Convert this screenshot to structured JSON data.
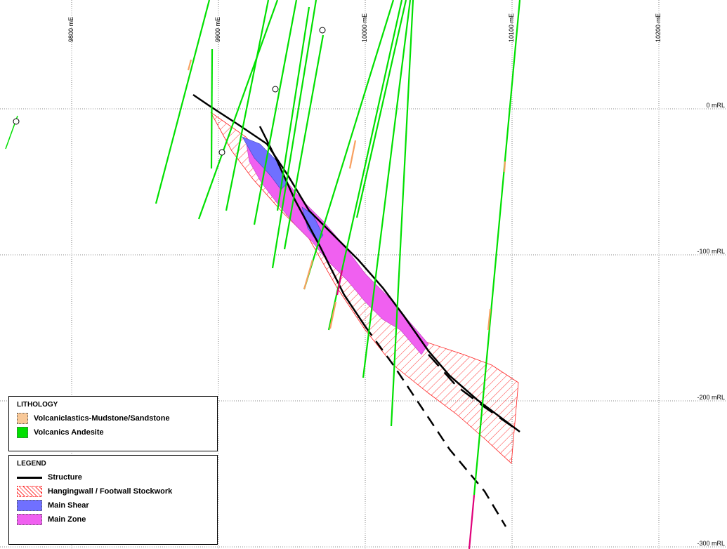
{
  "eastings": [
    {
      "label": "9800 mE",
      "value": 9800
    },
    {
      "label": "9900 mE",
      "value": 9900
    },
    {
      "label": "10000 mE",
      "value": 10000
    },
    {
      "label": "10100 mE",
      "value": 10100
    },
    {
      "label": "10200 mE",
      "value": 10200
    }
  ],
  "levels": [
    {
      "label": "0 mRL",
      "value": 0
    },
    {
      "label": "-100 mRL",
      "value": -100
    },
    {
      "label": "-200 mRL",
      "value": -200
    },
    {
      "label": "-300 mRL",
      "value": -300
    }
  ],
  "colors": {
    "andesite": "#00e000",
    "mudstone": "#f8c898",
    "main_shear": "#7070ff",
    "main_zone": "#f060f0",
    "stockwork": "#ff2020",
    "structure": "#000000",
    "grid": "#666666",
    "deep_hole": "#e0007a"
  },
  "lithology": {
    "title": "LITHOLOGY",
    "items": [
      {
        "label": "Volcaniclastics-Mudstone/Sandstone",
        "color": "#f8c898"
      },
      {
        "label": "Volcanics Andesite",
        "color": "#00e000"
      }
    ]
  },
  "legend": {
    "title": "LEGEND",
    "structure": "Structure",
    "stockwork": "Hangingwall / Footwall Stockwork",
    "main_shear": "Main Shear",
    "main_zone": "Main Zone"
  }
}
